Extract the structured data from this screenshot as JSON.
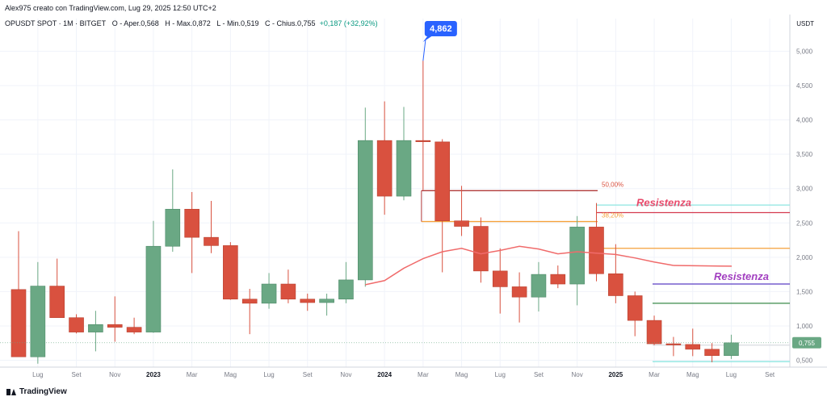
{
  "header": {
    "attribution": "Alex975 creato con TradingView.com, Lug 29, 2025 12:50 UTC+2",
    "symbol": "OPUSDT SPOT · 1M · BITGET",
    "open": "O - Aper.0,568",
    "high": "H - Max.0,872",
    "low": "L - Min.0,519",
    "close": "C - Chius.0,755",
    "change": "+0,187 (+32,92%)"
  },
  "brand": {
    "name": "TradingView"
  },
  "colors": {
    "up": "#6aa884",
    "down": "#d9513f",
    "ma": "#f06b6b"
  },
  "chart_data": {
    "type": "candlestick",
    "currency": "USDT",
    "ylim": [
      0.4,
      5.3
    ],
    "y_ticks": [
      "0,500",
      "1,000",
      "1,500",
      "2,000",
      "2,500",
      "3,000",
      "3,500",
      "4,000",
      "4,500",
      "5,000"
    ],
    "x_ticks": [
      "Lug",
      "Set",
      "Nov",
      "2023",
      "Mar",
      "Mag",
      "Lug",
      "Set",
      "Nov",
      "2024",
      "Mar",
      "Mag",
      "Lug",
      "Set",
      "Nov",
      "2025",
      "Mar",
      "Mag",
      "Lug",
      "Set"
    ],
    "last_price": "0,755",
    "candles": [
      {
        "x": "2022-06",
        "o": 1.53,
        "h": 2.38,
        "l": 0.55,
        "c": 0.55
      },
      {
        "x": "2022-07",
        "o": 0.55,
        "h": 1.93,
        "l": 0.45,
        "c": 1.58
      },
      {
        "x": "2022-08",
        "o": 1.58,
        "h": 1.98,
        "l": 1.12,
        "c": 1.12
      },
      {
        "x": "2022-09",
        "o": 1.12,
        "h": 1.17,
        "l": 0.89,
        "c": 0.91
      },
      {
        "x": "2022-10",
        "o": 0.91,
        "h": 1.22,
        "l": 0.63,
        "c": 1.02
      },
      {
        "x": "2022-11",
        "o": 1.02,
        "h": 1.43,
        "l": 0.77,
        "c": 0.98
      },
      {
        "x": "2022-12",
        "o": 0.98,
        "h": 1.12,
        "l": 0.88,
        "c": 0.91
      },
      {
        "x": "2023-01",
        "o": 0.91,
        "h": 2.53,
        "l": 0.9,
        "c": 2.16
      },
      {
        "x": "2023-02",
        "o": 2.16,
        "h": 3.28,
        "l": 2.08,
        "c": 2.7
      },
      {
        "x": "2023-03",
        "o": 2.7,
        "h": 2.95,
        "l": 1.77,
        "c": 2.29
      },
      {
        "x": "2023-04",
        "o": 2.29,
        "h": 2.82,
        "l": 2.06,
        "c": 2.17
      },
      {
        "x": "2023-05",
        "o": 2.17,
        "h": 2.22,
        "l": 1.38,
        "c": 1.39
      },
      {
        "x": "2023-06",
        "o": 1.39,
        "h": 1.54,
        "l": 0.88,
        "c": 1.33
      },
      {
        "x": "2023-07",
        "o": 1.33,
        "h": 1.77,
        "l": 1.25,
        "c": 1.61
      },
      {
        "x": "2023-08",
        "o": 1.61,
        "h": 1.82,
        "l": 1.33,
        "c": 1.39
      },
      {
        "x": "2023-09",
        "o": 1.39,
        "h": 1.47,
        "l": 1.22,
        "c": 1.34
      },
      {
        "x": "2023-10",
        "o": 1.34,
        "h": 1.47,
        "l": 1.15,
        "c": 1.39
      },
      {
        "x": "2023-11",
        "o": 1.39,
        "h": 1.93,
        "l": 1.33,
        "c": 1.67
      },
      {
        "x": "2023-12",
        "o": 1.67,
        "h": 4.18,
        "l": 1.57,
        "c": 3.7
      },
      {
        "x": "2024-01",
        "o": 3.7,
        "h": 4.27,
        "l": 2.62,
        "c": 2.89
      },
      {
        "x": "2024-02",
        "o": 2.89,
        "h": 4.19,
        "l": 2.83,
        "c": 3.7
      },
      {
        "x": "2024-03",
        "o": 3.7,
        "h": 4.862,
        "l": 2.98,
        "c": 3.69
      },
      {
        "x": "2024-04",
        "o": 3.68,
        "h": 3.72,
        "l": 1.78,
        "c": 2.53
      },
      {
        "x": "2024-05",
        "o": 2.53,
        "h": 3.04,
        "l": 2.31,
        "c": 2.45
      },
      {
        "x": "2024-06",
        "o": 2.45,
        "h": 2.58,
        "l": 1.63,
        "c": 1.8
      },
      {
        "x": "2024-07",
        "o": 1.8,
        "h": 2.13,
        "l": 1.18,
        "c": 1.57
      },
      {
        "x": "2024-08",
        "o": 1.57,
        "h": 1.78,
        "l": 1.05,
        "c": 1.42
      },
      {
        "x": "2024-09",
        "o": 1.42,
        "h": 1.93,
        "l": 1.21,
        "c": 1.75
      },
      {
        "x": "2024-10",
        "o": 1.75,
        "h": 1.88,
        "l": 1.55,
        "c": 1.61
      },
      {
        "x": "2024-11",
        "o": 1.61,
        "h": 2.6,
        "l": 1.3,
        "c": 2.44
      },
      {
        "x": "2024-12",
        "o": 2.44,
        "h": 2.79,
        "l": 1.65,
        "c": 1.76
      },
      {
        "x": "2025-01",
        "o": 1.76,
        "h": 2.19,
        "l": 1.33,
        "c": 1.44
      },
      {
        "x": "2025-02",
        "o": 1.44,
        "h": 1.5,
        "l": 0.85,
        "c": 1.08
      },
      {
        "x": "2025-03",
        "o": 1.08,
        "h": 1.15,
        "l": 0.72,
        "c": 0.74
      },
      {
        "x": "2025-04",
        "o": 0.74,
        "h": 0.84,
        "l": 0.56,
        "c": 0.73
      },
      {
        "x": "2025-05",
        "o": 0.73,
        "h": 0.96,
        "l": 0.56,
        "c": 0.66
      },
      {
        "x": "2025-06",
        "o": 0.66,
        "h": 0.75,
        "l": 0.47,
        "c": 0.568
      },
      {
        "x": "2025-07",
        "o": 0.568,
        "h": 0.872,
        "l": 0.519,
        "c": 0.755
      }
    ],
    "moving_average": [
      {
        "x": "2023-12",
        "y": 1.6
      },
      {
        "x": "2024-01",
        "y": 1.66
      },
      {
        "x": "2024-02",
        "y": 1.84
      },
      {
        "x": "2024-03",
        "y": 1.98
      },
      {
        "x": "2024-04",
        "y": 2.08
      },
      {
        "x": "2024-05",
        "y": 2.13
      },
      {
        "x": "2024-06",
        "y": 2.05
      },
      {
        "x": "2024-07",
        "y": 2.1
      },
      {
        "x": "2024-08",
        "y": 2.16
      },
      {
        "x": "2024-09",
        "y": 2.12
      },
      {
        "x": "2024-10",
        "y": 2.05
      },
      {
        "x": "2024-11",
        "y": 2.08
      },
      {
        "x": "2024-12",
        "y": 2.06
      },
      {
        "x": "2025-01",
        "y": 2.04
      },
      {
        "x": "2025-02",
        "y": 1.99
      },
      {
        "x": "2025-03",
        "y": 1.93
      },
      {
        "x": "2025-04",
        "y": 1.88
      }
    ],
    "annotations": {
      "high_label": "4,862",
      "fib_50_label": "50,00%",
      "fib_382_label": "38,20%",
      "resistance_1": "Resistenza",
      "resistance_2": "Resistenza"
    },
    "levels": {
      "fib_50": 2.97,
      "fib_382": 2.52,
      "resistance_red": 2.65,
      "cyan_upper": 2.76,
      "orange": 2.13,
      "purple": 1.61,
      "green": 1.33,
      "cyan_lower": 0.48
    }
  }
}
